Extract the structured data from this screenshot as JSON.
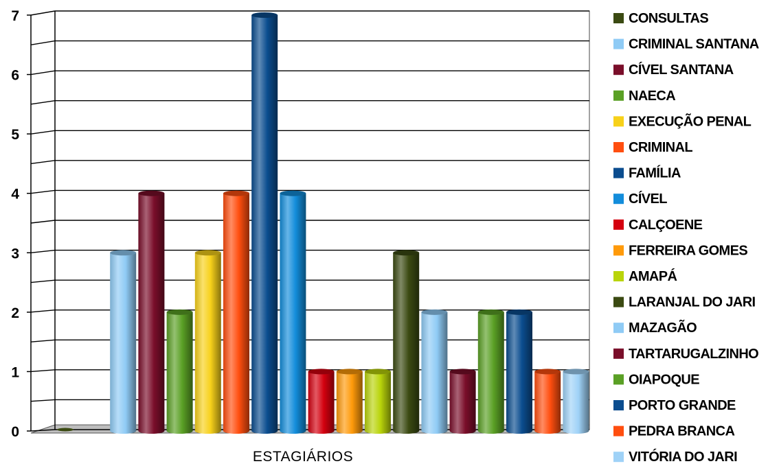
{
  "chart_data": {
    "type": "bar",
    "categories": [
      "ESTAGIÁRIOS"
    ],
    "ylim": [
      0,
      7
    ],
    "yticks": [
      0,
      1,
      2,
      3,
      4,
      5,
      6,
      7
    ],
    "grid": true,
    "legend_position": "right",
    "series": [
      {
        "name": "CONSULTAS",
        "values": [
          0
        ],
        "color": "#3b4a12"
      },
      {
        "name": "CRIMINAL SANTANA",
        "values": [
          3
        ],
        "color": "#8fcbf5"
      },
      {
        "name": "CÍVEL SANTANA",
        "values": [
          4
        ],
        "color": "#7a0e2a"
      },
      {
        "name": "NAECA",
        "values": [
          2
        ],
        "color": "#5aa025"
      },
      {
        "name": "EXECUÇÃO PENAL",
        "values": [
          3
        ],
        "color": "#f7d11a"
      },
      {
        "name": "CRIMINAL",
        "values": [
          4
        ],
        "color": "#ff4e0f"
      },
      {
        "name": "FAMÍLIA",
        "values": [
          7
        ],
        "color": "#0b4d8f"
      },
      {
        "name": "CÍVEL",
        "values": [
          4
        ],
        "color": "#138ddb"
      },
      {
        "name": "CALÇOENE",
        "values": [
          1
        ],
        "color": "#d4000f"
      },
      {
        "name": "FERREIRA GOMES",
        "values": [
          1
        ],
        "color": "#ff9a0a"
      },
      {
        "name": "AMAPÁ",
        "values": [
          1
        ],
        "color": "#b9d40a"
      },
      {
        "name": "LARANJAL DO JARI",
        "values": [
          3
        ],
        "color": "#3b4a12"
      },
      {
        "name": "MAZAGÃO",
        "values": [
          2
        ],
        "color": "#8fcbf5"
      },
      {
        "name": "TARTARUGALZINHO",
        "values": [
          1
        ],
        "color": "#7a0e2a"
      },
      {
        "name": "OIAPOQUE",
        "values": [
          2
        ],
        "color": "#5aa025"
      },
      {
        "name": "PORTO GRANDE",
        "values": [
          2
        ],
        "color": "#0b4d8f"
      },
      {
        "name": "PEDRA BRANCA",
        "values": [
          1
        ],
        "color": "#ff4e0f"
      },
      {
        "name": "VITÓRIA DO JARI",
        "values": [
          1
        ],
        "color": "#9fd2f7"
      }
    ]
  }
}
